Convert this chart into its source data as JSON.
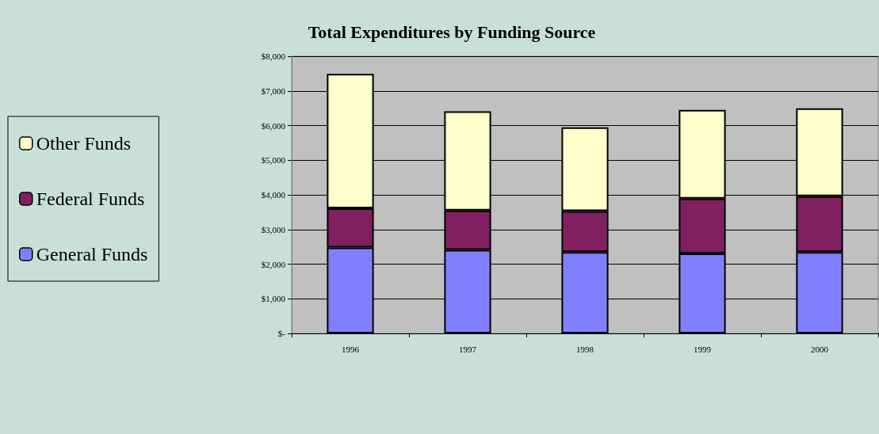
{
  "chart_data": {
    "type": "bar",
    "title": "Total Expenditures by Funding Source",
    "categories": [
      "1996",
      "1997",
      "1998",
      "1999",
      "2000"
    ],
    "stacked": true,
    "series": [
      {
        "name": "General Funds",
        "color": "#8080ff",
        "values": [
          2480,
          2410,
          2350,
          2310,
          2350
        ]
      },
      {
        "name": "Federal Funds",
        "color": "#802060",
        "values": [
          1130,
          1140,
          1180,
          1580,
          1610
        ]
      },
      {
        "name": "Other Funds",
        "color": "#ffffcc",
        "values": [
          3880,
          2860,
          2420,
          2560,
          2540
        ]
      }
    ],
    "ylim": [
      0,
      8000
    ],
    "yticks": [
      {
        "value": 0,
        "label": "$-"
      },
      {
        "value": 1000,
        "label": "$1,000"
      },
      {
        "value": 2000,
        "label": "$2,000"
      },
      {
        "value": 3000,
        "label": "$3,000"
      },
      {
        "value": 4000,
        "label": "$4,000"
      },
      {
        "value": 5000,
        "label": "$5,000"
      },
      {
        "value": 6000,
        "label": "$6,000"
      },
      {
        "value": 7000,
        "label": "$7,000"
      },
      {
        "value": 8000,
        "label": "$8,000"
      }
    ],
    "grid": "y",
    "legend": "left"
  }
}
